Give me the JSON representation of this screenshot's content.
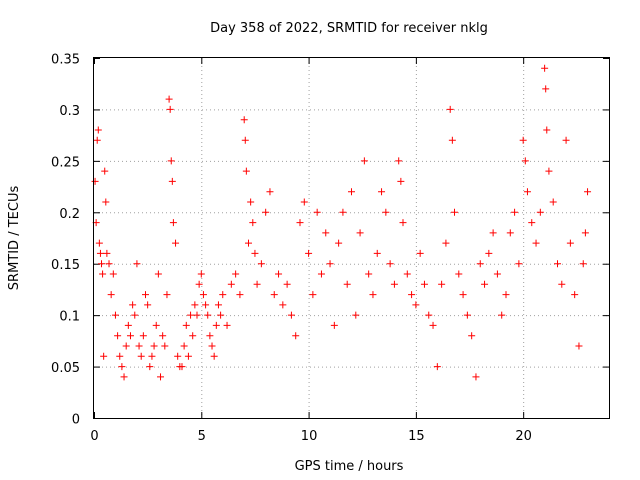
{
  "chart_data": {
    "type": "scatter",
    "title": "Day 358 of 2022, SRMTID for receiver nklg",
    "xlabel": "GPS time / hours",
    "ylabel": "SRMTID / TECUs",
    "xlim": [
      0,
      24
    ],
    "ylim": [
      0,
      0.35
    ],
    "xticks": [
      0,
      5,
      10,
      15,
      20
    ],
    "xtick_labels": [
      "0",
      "5",
      "10",
      "15",
      "20"
    ],
    "yticks": [
      0,
      0.05,
      0.1,
      0.15,
      0.2,
      0.25,
      0.3,
      0.35
    ],
    "ytick_labels": [
      "0",
      "0.05",
      "0.1",
      "0.15",
      "0.2",
      "0.25",
      "0.3",
      "0.35"
    ],
    "grid": true,
    "marker": "+",
    "series": [
      {
        "color": "#ff0000",
        "points": [
          [
            0.05,
            0.23
          ],
          [
            0.1,
            0.19
          ],
          [
            0.15,
            0.27
          ],
          [
            0.2,
            0.28
          ],
          [
            0.25,
            0.17
          ],
          [
            0.3,
            0.16
          ],
          [
            0.35,
            0.15
          ],
          [
            0.4,
            0.14
          ],
          [
            0.45,
            0.06
          ],
          [
            0.5,
            0.24
          ],
          [
            0.55,
            0.21
          ],
          [
            0.6,
            0.16
          ],
          [
            0.7,
            0.15
          ],
          [
            0.8,
            0.12
          ],
          [
            0.9,
            0.14
          ],
          [
            1.0,
            0.1
          ],
          [
            1.1,
            0.08
          ],
          [
            1.2,
            0.06
          ],
          [
            1.3,
            0.05
          ],
          [
            1.4,
            0.04
          ],
          [
            1.5,
            0.07
          ],
          [
            1.6,
            0.09
          ],
          [
            1.7,
            0.08
          ],
          [
            1.8,
            0.11
          ],
          [
            1.9,
            0.1
          ],
          [
            2.0,
            0.15
          ],
          [
            2.1,
            0.07
          ],
          [
            2.2,
            0.06
          ],
          [
            2.3,
            0.08
          ],
          [
            2.4,
            0.12
          ],
          [
            2.5,
            0.11
          ],
          [
            2.6,
            0.05
          ],
          [
            2.7,
            0.06
          ],
          [
            2.8,
            0.07
          ],
          [
            2.9,
            0.09
          ],
          [
            3.0,
            0.14
          ],
          [
            3.1,
            0.04
          ],
          [
            3.2,
            0.08
          ],
          [
            3.3,
            0.07
          ],
          [
            3.4,
            0.12
          ],
          [
            3.5,
            0.31
          ],
          [
            3.55,
            0.3
          ],
          [
            3.6,
            0.25
          ],
          [
            3.65,
            0.23
          ],
          [
            3.7,
            0.19
          ],
          [
            3.8,
            0.17
          ],
          [
            3.9,
            0.06
          ],
          [
            4.0,
            0.05
          ],
          [
            4.1,
            0.05
          ],
          [
            4.2,
            0.07
          ],
          [
            4.3,
            0.09
          ],
          [
            4.4,
            0.06
          ],
          [
            4.5,
            0.1
          ],
          [
            4.6,
            0.08
          ],
          [
            4.7,
            0.11
          ],
          [
            4.8,
            0.1
          ],
          [
            4.9,
            0.13
          ],
          [
            5.0,
            0.14
          ],
          [
            5.1,
            0.12
          ],
          [
            5.2,
            0.11
          ],
          [
            5.3,
            0.1
          ],
          [
            5.4,
            0.08
          ],
          [
            5.5,
            0.07
          ],
          [
            5.6,
            0.06
          ],
          [
            5.7,
            0.09
          ],
          [
            5.8,
            0.11
          ],
          [
            5.9,
            0.1
          ],
          [
            6.0,
            0.12
          ],
          [
            6.2,
            0.09
          ],
          [
            6.4,
            0.13
          ],
          [
            6.6,
            0.14
          ],
          [
            6.8,
            0.12
          ],
          [
            7.0,
            0.29
          ],
          [
            7.05,
            0.27
          ],
          [
            7.1,
            0.24
          ],
          [
            7.2,
            0.17
          ],
          [
            7.3,
            0.21
          ],
          [
            7.4,
            0.19
          ],
          [
            7.5,
            0.16
          ],
          [
            7.6,
            0.13
          ],
          [
            7.8,
            0.15
          ],
          [
            8.0,
            0.2
          ],
          [
            8.2,
            0.22
          ],
          [
            8.4,
            0.12
          ],
          [
            8.6,
            0.14
          ],
          [
            8.8,
            0.11
          ],
          [
            9.0,
            0.13
          ],
          [
            9.2,
            0.1
          ],
          [
            9.4,
            0.08
          ],
          [
            9.6,
            0.19
          ],
          [
            9.8,
            0.21
          ],
          [
            10.0,
            0.16
          ],
          [
            10.2,
            0.12
          ],
          [
            10.4,
            0.2
          ],
          [
            10.6,
            0.14
          ],
          [
            10.8,
            0.18
          ],
          [
            11.0,
            0.15
          ],
          [
            11.2,
            0.09
          ],
          [
            11.4,
            0.17
          ],
          [
            11.6,
            0.2
          ],
          [
            11.8,
            0.13
          ],
          [
            12.0,
            0.22
          ],
          [
            12.2,
            0.1
          ],
          [
            12.4,
            0.18
          ],
          [
            12.6,
            0.25
          ],
          [
            12.8,
            0.14
          ],
          [
            13.0,
            0.12
          ],
          [
            13.2,
            0.16
          ],
          [
            13.4,
            0.22
          ],
          [
            13.6,
            0.2
          ],
          [
            13.8,
            0.15
          ],
          [
            14.0,
            0.13
          ],
          [
            14.2,
            0.25
          ],
          [
            14.3,
            0.23
          ],
          [
            14.4,
            0.19
          ],
          [
            14.6,
            0.14
          ],
          [
            14.8,
            0.12
          ],
          [
            15.0,
            0.11
          ],
          [
            15.2,
            0.16
          ],
          [
            15.4,
            0.13
          ],
          [
            15.6,
            0.1
          ],
          [
            15.8,
            0.09
          ],
          [
            16.0,
            0.05
          ],
          [
            16.2,
            0.13
          ],
          [
            16.4,
            0.17
          ],
          [
            16.6,
            0.3
          ],
          [
            16.7,
            0.27
          ],
          [
            16.8,
            0.2
          ],
          [
            17.0,
            0.14
          ],
          [
            17.2,
            0.12
          ],
          [
            17.4,
            0.1
          ],
          [
            17.6,
            0.08
          ],
          [
            17.8,
            0.04
          ],
          [
            18.0,
            0.15
          ],
          [
            18.2,
            0.13
          ],
          [
            18.4,
            0.16
          ],
          [
            18.6,
            0.18
          ],
          [
            18.8,
            0.14
          ],
          [
            19.0,
            0.1
          ],
          [
            19.2,
            0.12
          ],
          [
            19.4,
            0.18
          ],
          [
            19.6,
            0.2
          ],
          [
            19.8,
            0.15
          ],
          [
            20.0,
            0.27
          ],
          [
            20.1,
            0.25
          ],
          [
            20.2,
            0.22
          ],
          [
            20.4,
            0.19
          ],
          [
            20.6,
            0.17
          ],
          [
            20.8,
            0.2
          ],
          [
            21.0,
            0.34
          ],
          [
            21.05,
            0.32
          ],
          [
            21.1,
            0.28
          ],
          [
            21.2,
            0.24
          ],
          [
            21.4,
            0.21
          ],
          [
            21.6,
            0.15
          ],
          [
            21.8,
            0.13
          ],
          [
            22.0,
            0.27
          ],
          [
            22.2,
            0.17
          ],
          [
            22.4,
            0.12
          ],
          [
            22.6,
            0.07
          ],
          [
            22.8,
            0.15
          ],
          [
            22.9,
            0.18
          ],
          [
            23.0,
            0.22
          ]
        ]
      }
    ]
  }
}
